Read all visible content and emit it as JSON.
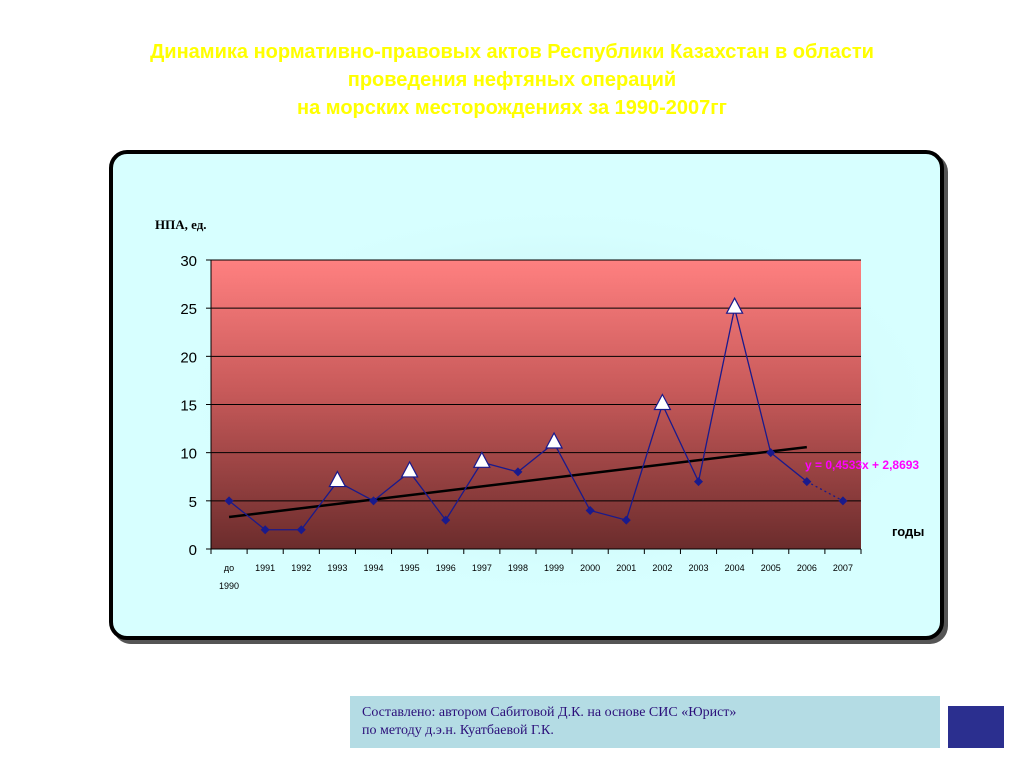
{
  "title": {
    "line1": "Динамика нормативно-правовых актов Республики Казахстан в области",
    "line2": "проведения нефтяных операций",
    "line3": "на морских месторождениях за 1990-2007гг"
  },
  "chart_data": {
    "type": "line",
    "ylabel": "НПА, ед.",
    "xlabel": "годы",
    "ylim": [
      0,
      30
    ],
    "yticks": [
      0,
      5,
      10,
      15,
      20,
      25,
      30
    ],
    "categories": [
      "до 1990",
      "1991",
      "1992",
      "1993",
      "1994",
      "1995",
      "1996",
      "1997",
      "1998",
      "1999",
      "2000",
      "2001",
      "2002",
      "2003",
      "2004",
      "2005",
      "2006",
      "2007"
    ],
    "series": [
      {
        "values": [
          5,
          2,
          2,
          7,
          5,
          8,
          3,
          9,
          8,
          11,
          4,
          3,
          15,
          7,
          25,
          10,
          7,
          5
        ]
      }
    ],
    "highlighted_indices": [
      3,
      5,
      7,
      9,
      12,
      14
    ],
    "trendline": {
      "slope": 0.4533,
      "intercept": 2.8693,
      "label": "y = 0,4533x + 2,8693"
    },
    "grid": true,
    "colors": {
      "plot_top": "#ff8080",
      "plot_bottom": "#6b2c2c",
      "line": "#1a1a8c",
      "trend": "#000000",
      "equation": "#ff00ff"
    }
  },
  "credit": {
    "line1": "Составлено: автором Сабитовой Д.К. на основе СИС «Юрист»",
    "line2": "по методу д.э.н. Куатбаевой Г.К."
  }
}
